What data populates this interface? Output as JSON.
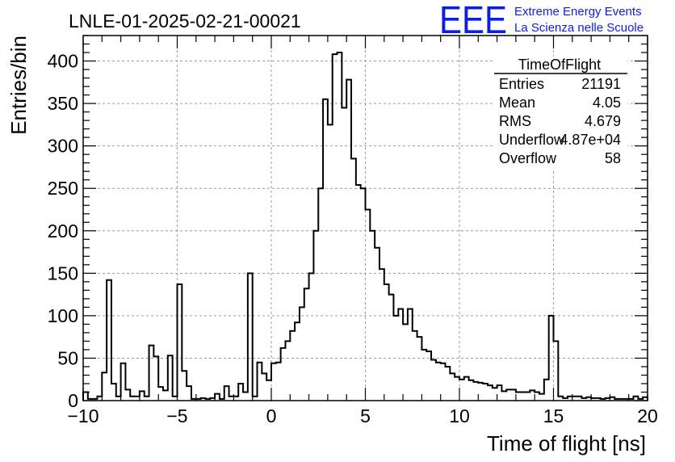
{
  "chart_data": {
    "type": "bar",
    "title": "LNLE-01-2025-02-21-00021",
    "xlabel": "Time of flight [ns]",
    "ylabel": "Entries/bin",
    "xlim": [
      -10,
      20
    ],
    "ylim": [
      0,
      430
    ],
    "x_ticks": [
      -10,
      -5,
      0,
      5,
      10,
      15,
      20
    ],
    "y_ticks": [
      0,
      50,
      100,
      150,
      200,
      250,
      300,
      350,
      400
    ],
    "grid": true,
    "bin_width": 0.25,
    "bin_start": -10,
    "values": [
      10,
      2,
      2,
      5,
      33,
      142,
      20,
      5,
      44,
      13,
      5,
      5,
      11,
      5,
      65,
      52,
      16,
      12,
      53,
      5,
      137,
      35,
      17,
      2,
      2,
      3,
      2,
      3,
      8,
      2,
      17,
      5,
      5,
      20,
      10,
      150,
      5,
      45,
      32,
      24,
      44,
      45,
      62,
      70,
      82,
      92,
      110,
      132,
      150,
      200,
      250,
      355,
      325,
      408,
      410,
      345,
      378,
      285,
      254,
      250,
      225,
      200,
      180,
      155,
      137,
      125,
      100,
      108,
      90,
      108,
      82,
      75,
      60,
      58,
      48,
      45,
      44,
      40,
      32,
      28,
      25,
      28,
      24,
      22,
      21,
      20,
      18,
      15,
      18,
      11,
      13,
      13,
      10,
      10,
      10,
      12,
      10,
      8,
      25,
      100,
      70,
      5,
      3,
      5,
      5,
      5,
      3,
      4,
      3,
      3,
      2,
      3,
      4,
      2,
      2,
      2,
      2,
      5,
      2,
      4
    ]
  },
  "stats_box": {
    "title": "TimeOfFlight",
    "rows": [
      {
        "label": "Entries",
        "value": "21191"
      },
      {
        "label": "Mean",
        "value": "4.05"
      },
      {
        "label": "RMS",
        "value": "4.679"
      },
      {
        "label": "Underflow",
        "value": "4.87e+04"
      },
      {
        "label": "Overflow",
        "value": "58"
      }
    ]
  },
  "branding": {
    "logo_text": "EEE",
    "line1": "Extreme Energy Events",
    "line2": "La Scienza nelle Scuole",
    "color": "#0a1fe6"
  }
}
